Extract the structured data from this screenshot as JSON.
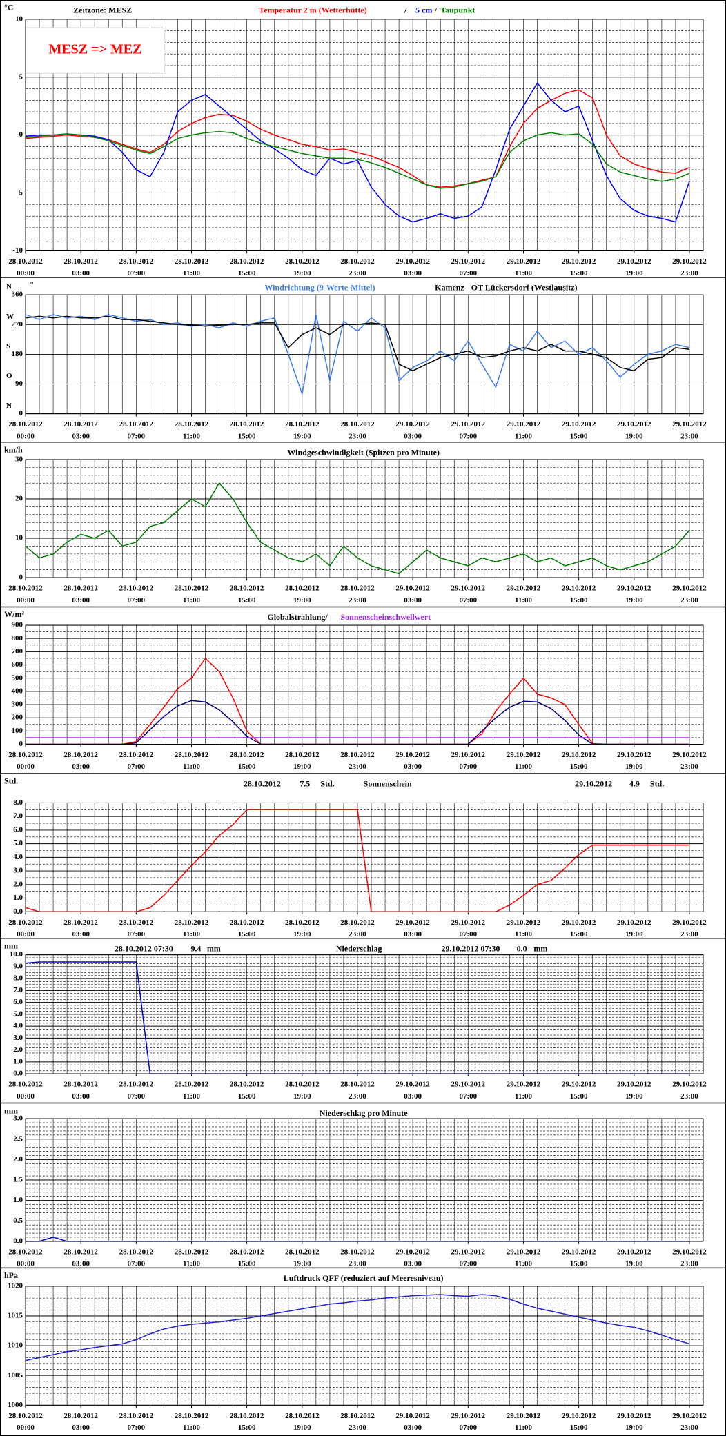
{
  "time_axis": {
    "xlim": [
      0,
      49
    ],
    "x": [
      0,
      1,
      2,
      3,
      4,
      5,
      6,
      7,
      8,
      9,
      10,
      11,
      12,
      13,
      14,
      15,
      16,
      17,
      18,
      19,
      20,
      21,
      22,
      23,
      24,
      25,
      26,
      27,
      28,
      29,
      30,
      31,
      32,
      33,
      34,
      35,
      36,
      37,
      38,
      39,
      40,
      41,
      42,
      43,
      44,
      45,
      46,
      47,
      48
    ],
    "xticks": [
      {
        "value": 0,
        "date": "28.10.2012",
        "time": "00:00"
      },
      {
        "value": 4,
        "date": "28.10.2012",
        "time": "03:00"
      },
      {
        "value": 8,
        "date": "28.10.2012",
        "time": "07:00"
      },
      {
        "value": 12,
        "date": "28.10.2012",
        "time": "11:00"
      },
      {
        "value": 16,
        "date": "28.10.2012",
        "time": "15:00"
      },
      {
        "value": 20,
        "date": "28.10.2012",
        "time": "19:00"
      },
      {
        "value": 24,
        "date": "28.10.2012",
        "time": "23:00"
      },
      {
        "value": 28,
        "date": "29.10.2012",
        "time": "03:00"
      },
      {
        "value": 32,
        "date": "29.10.2012",
        "time": "07:00"
      },
      {
        "value": 36,
        "date": "29.10.2012",
        "time": "11:00"
      },
      {
        "value": 40,
        "date": "29.10.2012",
        "time": "15:00"
      },
      {
        "value": 44,
        "date": "29.10.2012",
        "time": "19:00"
      },
      {
        "value": 48,
        "date": "29.10.2012",
        "time": "23:00"
      }
    ]
  },
  "chart_data": [
    {
      "type": "line",
      "y_label": "°C",
      "timezone_label": "Zeitzone: MESZ",
      "annotation": "MESZ => MEZ",
      "separator": "/",
      "ylim": [
        -10,
        10
      ],
      "yticks": [
        -10,
        -5,
        0,
        5,
        10
      ],
      "minor_step": 1,
      "series": [
        {
          "name": "Temperatur 2 m (Wetterhütte)",
          "color": "#ff0000",
          "values": [
            -0.3,
            -0.2,
            -0.1,
            0,
            -0.1,
            -0.2,
            -0.4,
            -0.8,
            -1.2,
            -1.5,
            -0.8,
            0.3,
            1,
            1.5,
            1.8,
            1.7,
            1.2,
            0.5,
            0,
            -0.4,
            -0.8,
            -1,
            -1.3,
            -1.2,
            -1.5,
            -1.8,
            -2.3,
            -2.8,
            -3.5,
            -4.3,
            -4.5,
            -4.4,
            -4.2,
            -3.9,
            -3.6,
            -1,
            1,
            2.3,
            3,
            3.6,
            3.9,
            3.2,
            0,
            -1.8,
            -2.5,
            -2.9,
            -3.2,
            -3.3,
            -2.8
          ]
        },
        {
          "name": "5 cm",
          "color": "#0000ff",
          "values": [
            -0.1,
            0,
            0,
            0.1,
            0,
            -0.1,
            -0.4,
            -1.5,
            -3,
            -3.6,
            -1.5,
            2,
            3,
            3.5,
            2.5,
            1.5,
            0.5,
            -0.5,
            -1.2,
            -2,
            -3,
            -3.5,
            -2,
            -2.5,
            -2.2,
            -4.5,
            -6,
            -7,
            -7.5,
            -7.2,
            -6.8,
            -7.2,
            -7,
            -6.2,
            -3,
            0.5,
            2.5,
            4.5,
            3,
            2,
            2.5,
            -0.5,
            -3.5,
            -5.5,
            -6.5,
            -7,
            -7.2,
            -7.5,
            -4
          ]
        },
        {
          "name": "Taupunkt",
          "color": "#008000",
          "values": [
            -0.2,
            -0.1,
            0,
            0.1,
            0,
            -0.2,
            -0.5,
            -0.9,
            -1.3,
            -1.6,
            -1,
            -0.3,
            0,
            0.2,
            0.3,
            0.2,
            -0.3,
            -0.7,
            -1,
            -1.3,
            -1.6,
            -1.8,
            -2,
            -2,
            -2.1,
            -2.4,
            -2.8,
            -3.3,
            -3.8,
            -4.3,
            -4.6,
            -4.5,
            -4.2,
            -4,
            -3.6,
            -1.5,
            -0.5,
            0,
            0.2,
            0,
            0.1,
            -0.8,
            -2.5,
            -3.2,
            -3.5,
            -3.8,
            -4,
            -3.8,
            -3.3
          ]
        }
      ]
    },
    {
      "type": "line",
      "y_label": "°",
      "title": "Kamenz - OT Lückersdorf (Westlausitz)",
      "ylim": [
        0,
        360
      ],
      "yticks": [
        0,
        90,
        180,
        270,
        360
      ],
      "compass": [
        {
          "value": 360,
          "label": "N"
        },
        {
          "value": 270,
          "label": "W"
        },
        {
          "value": 180,
          "label": "S"
        },
        {
          "value": 90,
          "label": "O"
        },
        {
          "value": 0,
          "label": "N"
        }
      ],
      "series": [
        {
          "name": "Windrichtung (9-Werte-Mittel)",
          "color": "#3d7cf0",
          "values": [
            300,
            285,
            300,
            290,
            295,
            285,
            300,
            290,
            280,
            285,
            270,
            275,
            265,
            270,
            260,
            275,
            265,
            280,
            290,
            180,
            60,
            300,
            100,
            280,
            250,
            290,
            260,
            100,
            140,
            160,
            190,
            160,
            220,
            150,
            80,
            210,
            190,
            250,
            200,
            220,
            180,
            200,
            160,
            110,
            150,
            180,
            190,
            210,
            200
          ]
        },
        {
          "color": "#000000",
          "values": [
            290,
            295,
            290,
            295,
            290,
            290,
            295,
            285,
            285,
            280,
            275,
            270,
            268,
            265,
            268,
            270,
            270,
            275,
            275,
            200,
            240,
            260,
            240,
            270,
            270,
            275,
            270,
            150,
            130,
            150,
            170,
            180,
            190,
            170,
            175,
            190,
            200,
            190,
            210,
            190,
            190,
            180,
            170,
            140,
            130,
            165,
            170,
            200,
            195
          ]
        }
      ]
    },
    {
      "type": "line",
      "y_label": "km/h",
      "title": "Windgeschwindigkeit (Spitzen pro Minute)",
      "ylim": [
        0,
        30
      ],
      "yticks": [
        0,
        10,
        20,
        30
      ],
      "minor_step": 2,
      "series": [
        {
          "color": "#007a00",
          "values": [
            8,
            5,
            6,
            9,
            11,
            10,
            12,
            8,
            9,
            13,
            14,
            17,
            20,
            18,
            24,
            20,
            14,
            9,
            7,
            5,
            4,
            6,
            3,
            8,
            5,
            3,
            2,
            1,
            4,
            7,
            5,
            4,
            3,
            5,
            4,
            5,
            6,
            4,
            5,
            3,
            4,
            5,
            3,
            2,
            3,
            4,
            6,
            8,
            12
          ]
        }
      ]
    },
    {
      "type": "line",
      "y_label": "W/m²",
      "title": "Globalstrahlung/",
      "ylim": [
        0,
        900
      ],
      "yticks": [
        0,
        100,
        200,
        300,
        400,
        500,
        600,
        700,
        800,
        900
      ],
      "minor_step": 50,
      "series": [
        {
          "color": "#ff0000",
          "values": [
            0,
            0,
            0,
            0,
            0,
            0,
            0,
            0,
            20,
            150,
            280,
            420,
            500,
            650,
            550,
            350,
            100,
            0,
            0,
            0,
            0,
            0,
            0,
            0,
            0,
            0,
            0,
            0,
            0,
            0,
            0,
            0,
            0,
            80,
            250,
            380,
            500,
            380,
            350,
            300,
            150,
            5,
            0,
            0,
            0,
            0,
            0,
            0,
            0
          ]
        },
        {
          "color": "#000080",
          "values": [
            0,
            0,
            0,
            0,
            0,
            0,
            0,
            0,
            10,
            110,
            210,
            290,
            330,
            320,
            260,
            170,
            60,
            0,
            0,
            0,
            0,
            0,
            0,
            0,
            0,
            0,
            0,
            0,
            0,
            0,
            0,
            0,
            0,
            100,
            200,
            280,
            325,
            320,
            270,
            180,
            70,
            0,
            0,
            0,
            0,
            0,
            0,
            0,
            0
          ]
        },
        {
          "name": "Sonnenscheinschwellwert",
          "color": "#a020f0",
          "values": [
            50,
            50,
            50,
            50,
            50,
            50,
            50,
            50,
            50,
            50,
            50,
            50,
            50,
            50,
            50,
            50,
            50,
            50,
            50,
            50,
            50,
            50,
            50,
            50,
            50,
            50,
            50,
            50,
            50,
            50,
            50,
            50,
            50,
            50,
            50,
            50,
            50,
            50,
            50,
            50,
            50,
            50,
            50,
            50,
            50,
            50,
            50,
            50,
            50
          ]
        }
      ]
    },
    {
      "type": "line",
      "y_label": "Std.",
      "title": "Sonnenschein",
      "annotations": [
        {
          "date": "28.10.2012",
          "value": 7.5,
          "unit": "Std."
        },
        {
          "date": "29.10.2012",
          "value": 4.9,
          "unit": "Std."
        }
      ],
      "ylim": [
        0,
        8
      ],
      "yticks": [
        {
          "value": 0,
          "label": "0.0"
        },
        {
          "value": 1,
          "label": "1.0"
        },
        {
          "value": 2,
          "label": "2.0"
        },
        {
          "value": 3,
          "label": "3.0"
        },
        {
          "value": 4,
          "label": "4.0"
        },
        {
          "value": 5,
          "label": "5.0"
        },
        {
          "value": 6,
          "label": "6.0"
        },
        {
          "value": 7,
          "label": "7.0"
        },
        {
          "value": 8,
          "label": "8.0"
        }
      ],
      "minor_step": 0.5,
      "series": [
        {
          "color": "#ff0000",
          "values": [
            0.3,
            0,
            0,
            0,
            0,
            0,
            0,
            0,
            0,
            0.3,
            1.2,
            2.3,
            3.4,
            4.4,
            5.6,
            6.4,
            7.5,
            7.5,
            7.5,
            7.5,
            7.5,
            7.5,
            7.5,
            7.5,
            7.5,
            0,
            0,
            0,
            0,
            0,
            0,
            0,
            0,
            0,
            0,
            0.5,
            1.2,
            2,
            2.3,
            3.2,
            4.2,
            4.9,
            4.9,
            4.9,
            4.9,
            4.9,
            4.9,
            4.9,
            4.9
          ]
        }
      ]
    },
    {
      "type": "line",
      "y_label": "mm",
      "title": "Niederschlag",
      "annotations": [
        {
          "date": "28.10.2012 07:30",
          "value": 9.4,
          "unit": "mm"
        },
        {
          "date": "29.10.2012 07:30",
          "value": 0,
          "label": "0.0",
          "unit": "mm"
        }
      ],
      "ylim": [
        0,
        10
      ],
      "yticks": [
        {
          "value": 0,
          "label": "0.0"
        },
        {
          "value": 1,
          "label": "1.0"
        },
        {
          "value": 2,
          "label": "2.0"
        },
        {
          "value": 3,
          "label": "3.0"
        },
        {
          "value": 4,
          "label": "4.0"
        },
        {
          "value": 5,
          "label": "5.0"
        },
        {
          "value": 6,
          "label": "6.0"
        },
        {
          "value": 7,
          "label": "7.0"
        },
        {
          "value": 8,
          "label": "8.0"
        },
        {
          "value": 9,
          "label": "9.0"
        },
        {
          "value": 10,
          "label": "10.0"
        }
      ],
      "minor_step": 0.25,
      "series": [
        {
          "color": "#0000cc",
          "values": [
            9.3,
            9.4,
            9.4,
            9.4,
            9.4,
            9.4,
            9.4,
            9.4,
            9.4,
            0,
            0,
            0,
            0,
            0,
            0,
            0,
            0,
            0,
            0,
            0,
            0,
            0,
            0,
            0,
            0,
            0,
            0,
            0,
            0,
            0,
            0,
            0,
            0,
            0,
            0,
            0,
            0,
            0,
            0,
            0,
            0,
            0,
            0,
            0,
            0,
            0,
            0,
            0,
            0
          ]
        }
      ]
    },
    {
      "type": "line",
      "y_label": "mm",
      "title": "Niederschlag pro Minute",
      "ylim": [
        0,
        3
      ],
      "yticks": [
        {
          "value": 0,
          "label": "0.0"
        },
        0.5,
        {
          "value": 1,
          "label": "1.0"
        },
        1.5,
        {
          "value": 2,
          "label": "2.0"
        },
        2.5,
        {
          "value": 3,
          "label": "3.0"
        }
      ],
      "minor_step": 0.1,
      "series": [
        {
          "color": "#0000cc",
          "values": [
            0,
            0,
            0.1,
            0,
            0,
            0,
            0,
            0,
            0,
            0,
            0,
            0,
            0,
            0,
            0,
            0,
            0,
            0,
            0,
            0,
            0,
            0,
            0,
            0,
            0,
            0,
            0,
            0,
            0,
            0,
            0,
            0,
            0,
            0,
            0,
            0,
            0,
            0,
            0,
            0,
            0,
            0,
            0,
            0,
            0,
            0,
            0,
            0,
            0
          ]
        }
      ]
    },
    {
      "type": "line",
      "y_label": "hPa",
      "title": "Luftdruck QFF (reduziert auf Meeresniveau)",
      "ylim": [
        1000,
        1020
      ],
      "yticks": [
        1000,
        1005,
        1010,
        1015,
        1020
      ],
      "minor_step": 1,
      "series": [
        {
          "color": "#2020d0",
          "values": [
            1007.5,
            1008,
            1008.5,
            1009,
            1009.3,
            1009.7,
            1010,
            1010.3,
            1011,
            1012,
            1012.8,
            1013.3,
            1013.6,
            1013.8,
            1014,
            1014.3,
            1014.6,
            1015,
            1015.4,
            1015.8,
            1016.2,
            1016.6,
            1017,
            1017.2,
            1017.5,
            1017.7,
            1018,
            1018.2,
            1018.4,
            1018.5,
            1018.6,
            1018.4,
            1018.3,
            1018.6,
            1018.4,
            1017.8,
            1017,
            1016.3,
            1015.8,
            1015.3,
            1014.8,
            1014.3,
            1013.8,
            1013.4,
            1013.1,
            1012.5,
            1011.8,
            1011,
            1010.3
          ]
        }
      ]
    }
  ]
}
